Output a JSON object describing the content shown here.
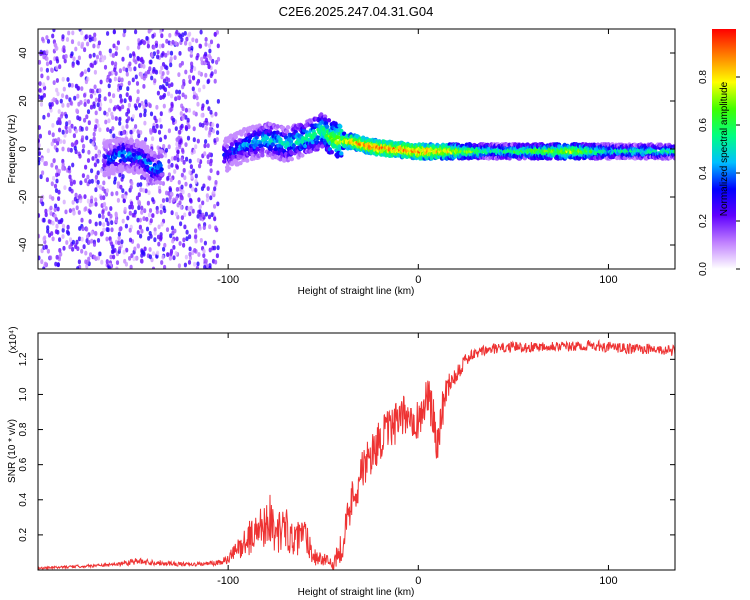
{
  "title": "C2E6.2025.247.04.31.G04",
  "chart_data": [
    {
      "type": "heatmap",
      "title": "C2E6.2025.247.04.31.G04",
      "xlabel": "Height of straight line (km)",
      "ylabel": "Frequency (Hz)",
      "xlim": [
        -200,
        135
      ],
      "ylim": [
        -50,
        50
      ],
      "xticks": [
        {
          "v": -100,
          "t": "-100"
        },
        {
          "v": 0,
          "t": "0"
        },
        {
          "v": 100,
          "t": "100"
        }
      ],
      "yticks": [
        {
          "v": -40,
          "t": "-40"
        },
        {
          "v": -20,
          "t": "-20"
        },
        {
          "v": 0,
          "t": "0"
        },
        {
          "v": 20,
          "t": "20"
        },
        {
          "v": 40,
          "t": "40"
        }
      ],
      "colorbar": {
        "label": "Normalized spectral amplitude",
        "range": [
          0,
          1
        ],
        "ticks": [
          {
            "v": 0.0,
            "t": "0.0"
          },
          {
            "v": 0.2,
            "t": "0.2"
          },
          {
            "v": 0.4,
            "t": "0.4"
          },
          {
            "v": 0.6,
            "t": "0.6"
          },
          {
            "v": 0.8,
            "t": "0.8"
          }
        ],
        "colors": [
          "#ffffff",
          "#c080ff",
          "#6000ff",
          "#0000ff",
          "#00c0ff",
          "#00ff80",
          "#40ff00",
          "#ffff00",
          "#ff8000",
          "#ff0000"
        ]
      },
      "noise_region": [
        -200,
        -105
      ],
      "ridge": [
        {
          "x": -165,
          "y": -4,
          "a": 0.35
        },
        {
          "x": -155,
          "y": -2,
          "a": 0.45
        },
        {
          "x": -145,
          "y": -4,
          "a": 0.4
        },
        {
          "x": -140,
          "y": -8,
          "a": 0.45
        },
        {
          "x": -100,
          "y": -2,
          "a": 0.35
        },
        {
          "x": -90,
          "y": 2,
          "a": 0.45
        },
        {
          "x": -80,
          "y": 4,
          "a": 0.5
        },
        {
          "x": -70,
          "y": 2,
          "a": 0.5
        },
        {
          "x": -60,
          "y": 4,
          "a": 0.55
        },
        {
          "x": -50,
          "y": 8,
          "a": 0.6
        },
        {
          "x": -45,
          "y": 4,
          "a": 0.7
        },
        {
          "x": -35,
          "y": 3,
          "a": 0.85
        },
        {
          "x": -25,
          "y": 1,
          "a": 0.9
        },
        {
          "x": -15,
          "y": 0,
          "a": 0.9
        },
        {
          "x": 0,
          "y": -1,
          "a": 0.9
        },
        {
          "x": 10,
          "y": -1,
          "a": 0.85
        },
        {
          "x": 40,
          "y": -1,
          "a": 0.55
        },
        {
          "x": 80,
          "y": -1,
          "a": 0.75
        },
        {
          "x": 100,
          "y": -1,
          "a": 0.55
        },
        {
          "x": 135,
          "y": -1,
          "a": 0.55
        }
      ]
    },
    {
      "type": "line",
      "xlabel": "Height of straight line (km)",
      "ylabel": "SNR (10 * v/v)",
      "yscale_label": "(x10⁴)",
      "xlim": [
        -200,
        135
      ],
      "ylim": [
        0,
        1.35
      ],
      "xticks": [
        {
          "v": -100,
          "t": "-100"
        },
        {
          "v": 0,
          "t": "0"
        },
        {
          "v": 100,
          "t": "100"
        }
      ],
      "yticks": [
        {
          "v": 0.2,
          "t": "0.2"
        },
        {
          "v": 0.4,
          "t": "0.4"
        },
        {
          "v": 0.6,
          "t": "0.6"
        },
        {
          "v": 0.8,
          "t": "0.8"
        },
        {
          "v": 1.0,
          "t": "1.0"
        },
        {
          "v": 1.2,
          "t": "1.2"
        }
      ],
      "color": "#ee3333",
      "series": [
        {
          "name": "SNR",
          "x": [
            -200,
            -160,
            -150,
            -120,
            -105,
            -100,
            -95,
            -85,
            -78,
            -75,
            -70,
            -65,
            -60,
            -55,
            -50,
            -45,
            -40,
            -35,
            -30,
            -25,
            -20,
            -15,
            -10,
            -5,
            0,
            5,
            10,
            15,
            20,
            25,
            30,
            35,
            40,
            50,
            60,
            70,
            80,
            90,
            100,
            110,
            120,
            130,
            135
          ],
          "y": [
            0.01,
            0.03,
            0.05,
            0.03,
            0.04,
            0.06,
            0.12,
            0.22,
            0.3,
            0.2,
            0.25,
            0.15,
            0.22,
            0.08,
            0.06,
            0.03,
            0.15,
            0.4,
            0.55,
            0.65,
            0.75,
            0.8,
            0.85,
            0.9,
            0.85,
            1.0,
            0.75,
            1.05,
            1.12,
            1.2,
            1.23,
            1.25,
            1.26,
            1.27,
            1.27,
            1.28,
            1.27,
            1.28,
            1.27,
            1.26,
            1.26,
            1.25,
            1.25
          ],
          "noise": [
            0.005,
            0.01,
            0.02,
            0.01,
            0.015,
            0.03,
            0.06,
            0.12,
            0.14,
            0.12,
            0.12,
            0.1,
            0.1,
            0.06,
            0.04,
            0.03,
            0.1,
            0.12,
            0.12,
            0.12,
            0.12,
            0.12,
            0.12,
            0.12,
            0.12,
            0.12,
            0.14,
            0.08,
            0.06,
            0.04,
            0.03,
            0.03,
            0.03,
            0.03,
            0.03,
            0.03,
            0.03,
            0.03,
            0.03,
            0.03,
            0.03,
            0.03,
            0.03
          ]
        }
      ]
    }
  ]
}
